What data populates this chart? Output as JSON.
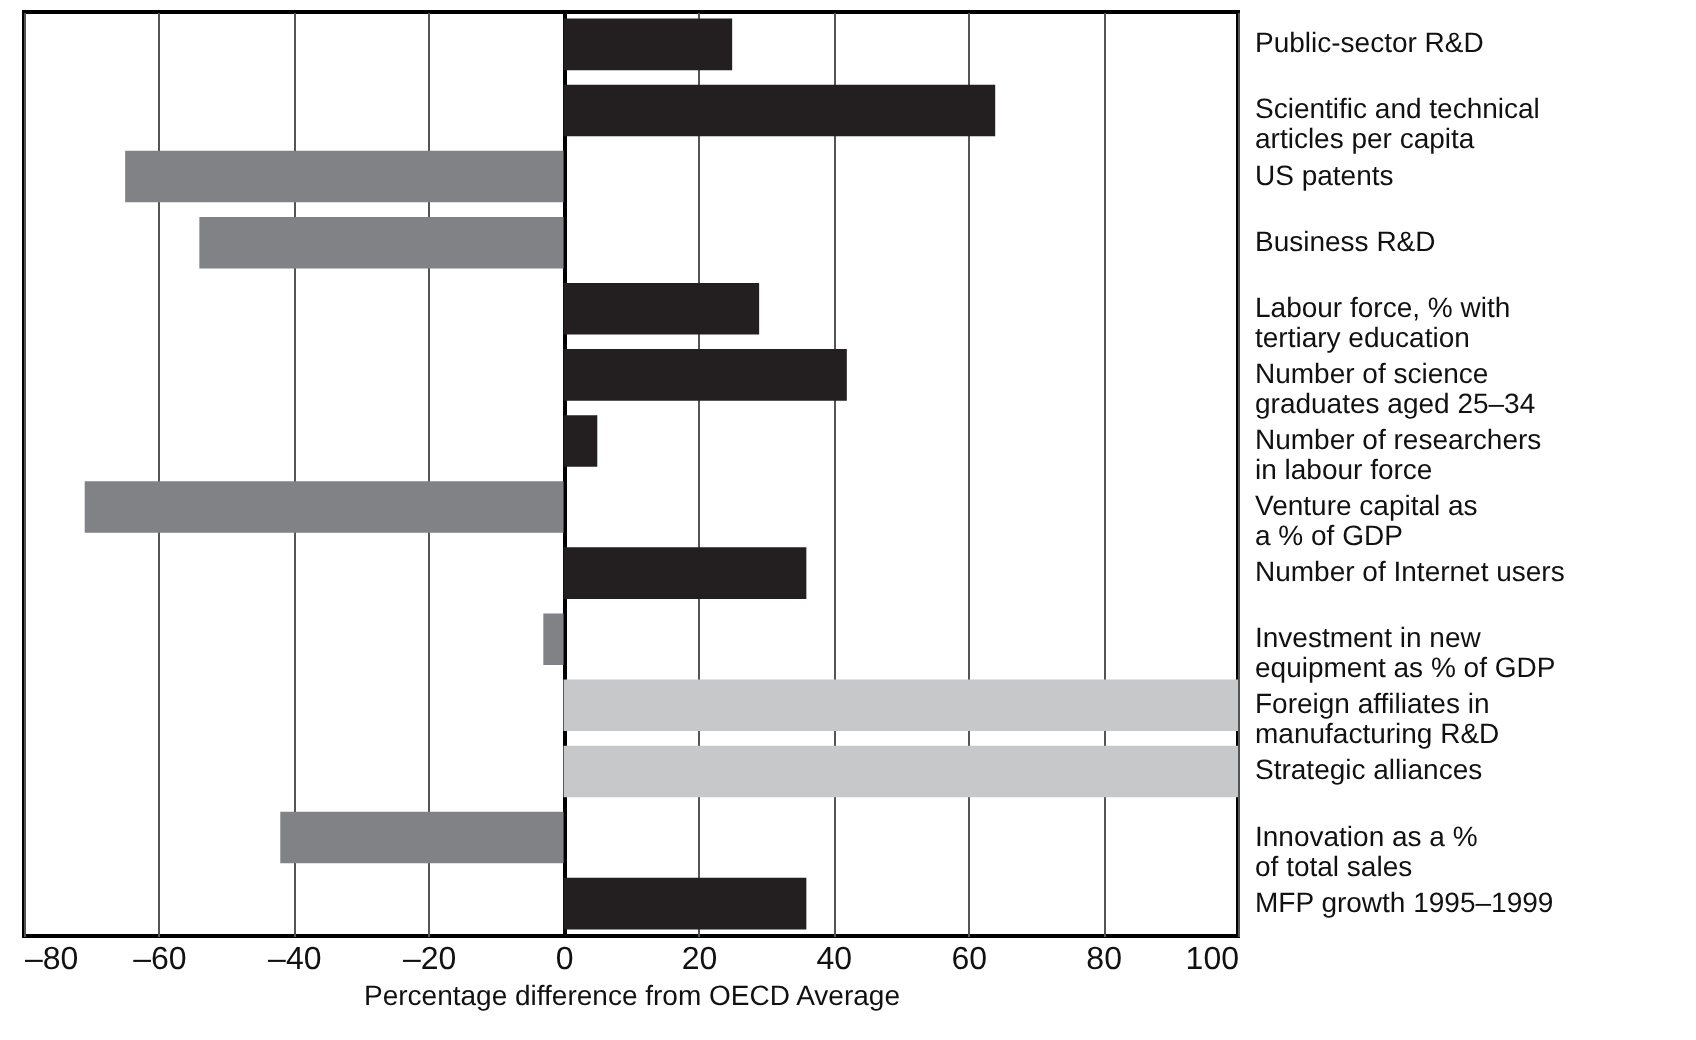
{
  "chart_data": {
    "type": "bar",
    "orientation": "horizontal",
    "xlabel": "Percentage difference from OECD Average",
    "categories": [
      "Public-sector R&D",
      "Scientific and technical\narticles per capita",
      "US patents",
      "Business R&D",
      "Labour force, % with\ntertiary education",
      "Number of science\ngraduates aged 25–34",
      "Number of researchers\nin labour force",
      "Venture capital as\na % of GDP",
      "Number of Internet users",
      "Investment in new\nequipment as % of GDP",
      "Foreign affiliates in\nmanufacturing R&D",
      "Strategic alliances",
      "Innovation as a %\nof total sales",
      "MFP growth 1995–1999"
    ],
    "values": [
      25,
      64,
      -65,
      -54,
      29,
      42,
      5,
      -71,
      36,
      -3,
      100,
      100,
      -42,
      36
    ],
    "colors": [
      "#231f20",
      "#231f20",
      "#808285",
      "#808285",
      "#231f20",
      "#231f20",
      "#231f20",
      "#808285",
      "#231f20",
      "#808285",
      "#c7c8ca",
      "#c7c8ca",
      "#808285",
      "#231f20"
    ],
    "xlim": [
      -80,
      100
    ],
    "xticks": [
      {
        "value": -80,
        "label": "–80"
      },
      {
        "value": -60,
        "label": "–60"
      },
      {
        "value": -40,
        "label": "–40"
      },
      {
        "value": -20,
        "label": "–20"
      },
      0,
      20,
      40,
      60,
      80,
      100
    ],
    "grid": "x"
  }
}
